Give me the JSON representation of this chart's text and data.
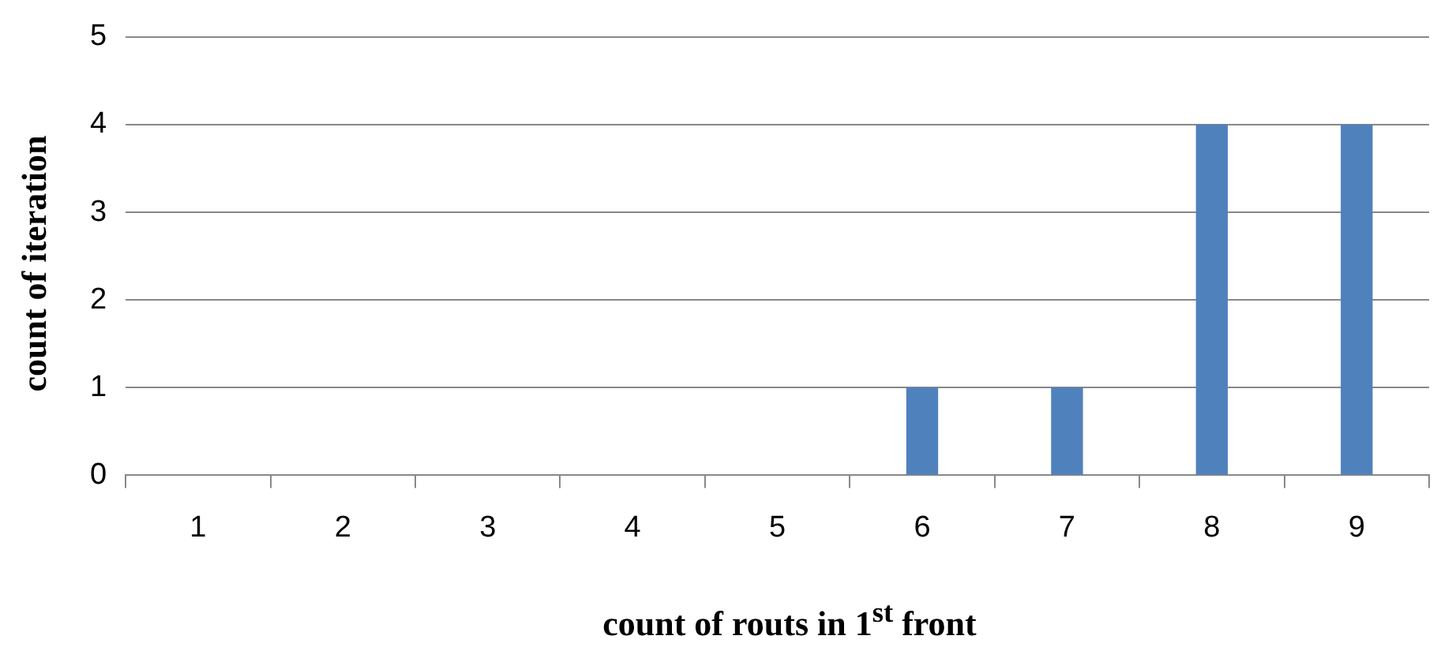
{
  "chart_data": {
    "type": "bar",
    "xlabel": "count of routs in 1$^{st}$ front",
    "ylabel": "count of iteration",
    "categories": [
      "1",
      "2",
      "3",
      "4",
      "5",
      "6",
      "7",
      "8",
      "9"
    ],
    "values": [
      0,
      0,
      0,
      0,
      0,
      1,
      1,
      4,
      4
    ],
    "color": "#4f81bd",
    "ylim": [
      0,
      5
    ],
    "yticks": [
      0,
      1,
      2,
      3,
      4,
      5
    ],
    "grid": "y"
  }
}
